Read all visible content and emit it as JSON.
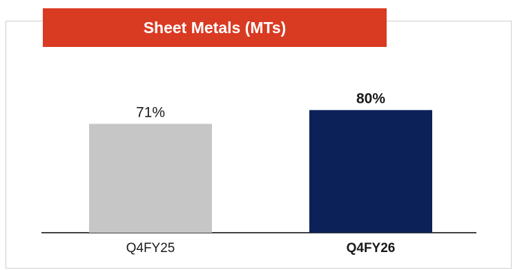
{
  "chart_data": {
    "type": "bar",
    "title": "Sheet Metals (MTs)",
    "categories": [
      "Q4FY25",
      "Q4FY26"
    ],
    "values": [
      71,
      80
    ],
    "value_labels": [
      "71%",
      "80%"
    ],
    "ylim": [
      0,
      100
    ],
    "grid": false,
    "legend": "none",
    "colors": [
      "#c6c6c6",
      "#0c2158"
    ],
    "emphasized_category": "Q4FY26"
  },
  "colors": {
    "title_bg": "#d93a22",
    "frame": "#cfcfcf",
    "axis": "#000000"
  }
}
